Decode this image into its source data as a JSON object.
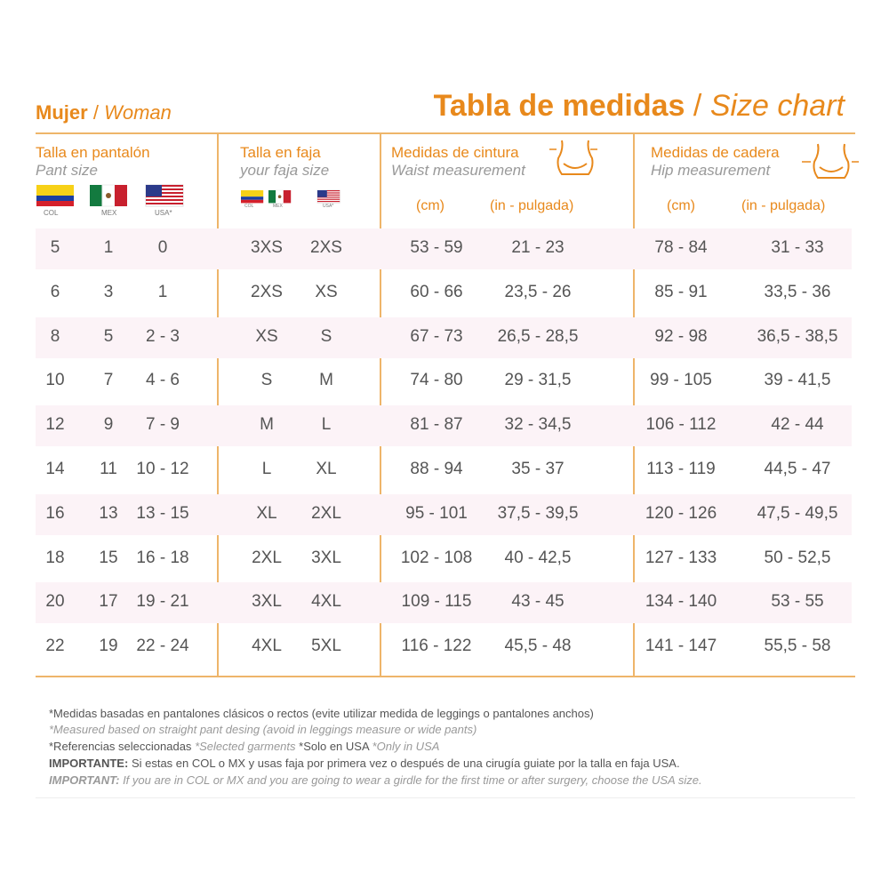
{
  "header": {
    "woman_es": "Mujer",
    "woman_sep": "/",
    "woman_en": "Woman",
    "title_es": "Tabla de medidas",
    "title_sep": "/",
    "title_en": "Size chart"
  },
  "groups": [
    {
      "title_es": "Talla en pantalón",
      "title_en": "Pant size",
      "flags": [
        "COL",
        "MEX",
        "USA*"
      ]
    },
    {
      "title_es": "Talla en faja",
      "title_en": "your faja size",
      "flags": [
        "COL",
        "MEX",
        "USA*"
      ]
    },
    {
      "title_es": "Medidas de cintura",
      "title_en": "Waist measurement",
      "units": [
        "(cm)",
        "(in - pulgada)"
      ]
    },
    {
      "title_es": "Medidas de cadera",
      "title_en": "Hip measurement",
      "units": [
        "(cm)",
        "(in - pulgada)"
      ]
    }
  ],
  "table": {
    "rows": [
      [
        "5",
        "1",
        "0",
        "3XS",
        "2XS",
        "53 - 59",
        "21 - 23",
        "78 - 84",
        "31 - 33"
      ],
      [
        "6",
        "3",
        "1",
        "2XS",
        "XS",
        "60 - 66",
        "23,5 - 26",
        "85 - 91",
        "33,5 - 36"
      ],
      [
        "8",
        "5",
        "2 - 3",
        "XS",
        "S",
        "67 - 73",
        "26,5 - 28,5",
        "92 - 98",
        "36,5 - 38,5"
      ],
      [
        "10",
        "7",
        "4 - 6",
        "S",
        "M",
        "74 - 80",
        "29 - 31,5",
        "99 - 105",
        "39 - 41,5"
      ],
      [
        "12",
        "9",
        "7 - 9",
        "M",
        "L",
        "81 - 87",
        "32 - 34,5",
        "106 - 112",
        "42 - 44"
      ],
      [
        "14",
        "11",
        "10 - 12",
        "L",
        "XL",
        "88 - 94",
        "35 - 37",
        "113 - 119",
        "44,5 - 47"
      ],
      [
        "16",
        "13",
        "13 - 15",
        "XL",
        "2XL",
        "95 - 101",
        "37,5 - 39,5",
        "120 - 126",
        "47,5 - 49,5"
      ],
      [
        "18",
        "15",
        "16 - 18",
        "2XL",
        "3XL",
        "102 - 108",
        "40 - 42,5",
        "127 - 133",
        "50 - 52,5"
      ],
      [
        "20",
        "17",
        "19 - 21",
        "3XL",
        "4XL",
        "109 - 115",
        "43 - 45",
        "134 - 140",
        "53 - 55"
      ],
      [
        "22",
        "19",
        "22 - 24",
        "4XL",
        "5XL",
        "116 - 122",
        "45,5 - 48",
        "141 - 147",
        "55,5 - 58"
      ]
    ]
  },
  "notes": {
    "line1": "*Medidas basadas en pantalones clásicos o rectos (evite utilizar medida de leggings o pantalones anchos)",
    "line2": "*Measured based on straight pant desing (avoid in leggings measure or wide pants)",
    "line3": [
      "*Referencias seleccionadas",
      "*Selected garments",
      "*Solo en USA",
      "*Only in USA"
    ],
    "line4": {
      "bold": "IMPORTANTE:",
      "text": "Si estas en COL o MX y usas faja por primera vez o después de una cirugía guiate por la talla en faja USA."
    },
    "line5": {
      "bold": "IMPORTANT:",
      "text": "If you are in COL or MX and you are going to wear a girdle for the first time or after surgery, choose the USA size."
    }
  }
}
